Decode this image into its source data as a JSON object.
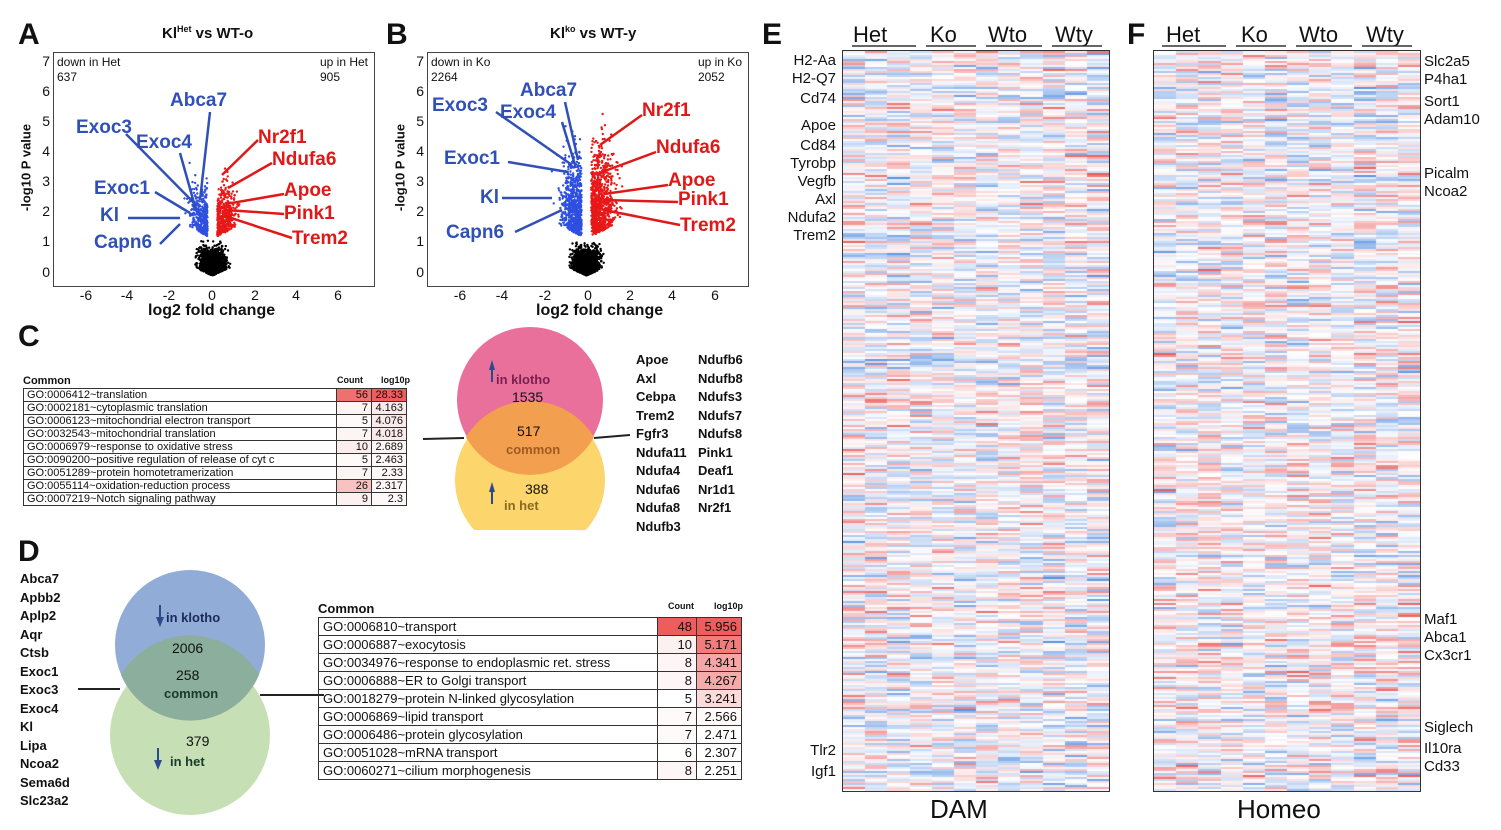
{
  "panels": {
    "a": {
      "label": "A",
      "title_pre": "Kl",
      "title_sup": "Het",
      "title_post": " vs WT-o",
      "down_label": "down in Het",
      "down_count": "637",
      "up_label": "up in Het",
      "up_count": "905",
      "ylabel": "-log10 P value",
      "xlabel": "log2 fold change",
      "yticks": [
        "7",
        "6",
        "5",
        "4",
        "3",
        "2",
        "1",
        "0"
      ],
      "xticks": [
        "-6",
        "-4",
        "-2",
        "0",
        "2",
        "4",
        "6"
      ],
      "blue_genes": [
        "Abca7",
        "Exoc3",
        "Exoc4",
        "Exoc1",
        "Kl",
        "Capn6"
      ],
      "red_genes": [
        "Nr2f1",
        "Ndufa6",
        "Apoe",
        "Pink1",
        "Trem2"
      ]
    },
    "b": {
      "label": "B",
      "title_pre": "Kl",
      "title_sup": "ko",
      "title_post": " vs WT-y",
      "down_label": "down in Ko",
      "down_count": "2264",
      "up_label": "up in Ko",
      "up_count": "2052",
      "ylabel": "-log10 P value",
      "xlabel": "log2 fold change",
      "yticks": [
        "7",
        "6",
        "5",
        "4",
        "3",
        "2",
        "1",
        "0"
      ],
      "xticks": [
        "-6",
        "-4",
        "-2",
        "0",
        "2",
        "4",
        "6"
      ],
      "blue_genes": [
        "Abca7",
        "Exoc3",
        "Exoc4",
        "Exoc1",
        "Kl",
        "Capn6"
      ],
      "red_genes": [
        "Nr2f1",
        "Ndufa6",
        "Apoe",
        "Pink1",
        "Trem2"
      ]
    },
    "c": {
      "label": "C",
      "table_header": "Common",
      "col_count": "Count",
      "col_logp": "log10p",
      "rows": [
        {
          "term": "GO:0006412~translation",
          "count": "56",
          "logp": "28.33"
        },
        {
          "term": "GO:0002181~cytoplasmic translation",
          "count": "7",
          "logp": "4.163"
        },
        {
          "term": "GO:0006123~mitochondrial electron transport",
          "count": "5",
          "logp": "4.076"
        },
        {
          "term": "GO:0032543~mitochondrial translation",
          "count": "7",
          "logp": "4.018"
        },
        {
          "term": "GO:0006979~response to oxidative stress",
          "count": "10",
          "logp": "2.689"
        },
        {
          "term": "GO:0090200~positive regulation of release of cyt c",
          "count": "5",
          "logp": "2.463"
        },
        {
          "term": "GO:0051289~protein homotetramerization",
          "count": "7",
          "logp": "2.33"
        },
        {
          "term": "GO:0055114~oxidation-reduction process",
          "count": "26",
          "logp": "2.317"
        },
        {
          "term": "GO:0007219~Notch signaling pathway",
          "count": "9",
          "logp": "2.3"
        }
      ],
      "venn_top_label": "in klotho",
      "venn_top_count": "1535",
      "venn_common_count": "517",
      "venn_common_label": "common",
      "venn_bottom_count": "388",
      "venn_bottom_label": "in het",
      "genes_col1": [
        "Apoe",
        "Axl",
        "Cebpa",
        "Trem2",
        "Fgfr3",
        "Ndufa11",
        "Ndufa4",
        "Ndufa6",
        "Ndufa8",
        "Ndufb3"
      ],
      "genes_col2": [
        "Ndufb6",
        "Ndufb8",
        "Ndufs3",
        "Ndufs7",
        "Ndufs8",
        "Pink1",
        "Deaf1",
        "Nr1d1",
        "Nr2f1"
      ]
    },
    "d": {
      "label": "D",
      "genes": [
        "Abca7",
        "Apbb2",
        "Aplp2",
        "Aqr",
        "Ctsb",
        "Exoc1",
        "Exoc3",
        "Exoc4",
        "Kl",
        "Lipa",
        "Ncoa2",
        "Sema6d",
        "Slc23a2"
      ],
      "venn_top_label": "in klotho",
      "venn_top_count": "2006",
      "venn_common_count": "258",
      "venn_common_label": "common",
      "venn_bottom_count": "379",
      "venn_bottom_label": "in het",
      "table_header": "Common",
      "col_count": "Count",
      "col_logp": "log10p",
      "rows": [
        {
          "term": "GO:0006810~transport",
          "count": "48",
          "logp": "5.956"
        },
        {
          "term": "GO:0006887~exocytosis",
          "count": "10",
          "logp": "5.171"
        },
        {
          "term": "GO:0034976~response to endoplasmic ret. stress",
          "count": "8",
          "logp": "4.341"
        },
        {
          "term": "GO:0006888~ER to Golgi  transport",
          "count": "8",
          "logp": "4.267"
        },
        {
          "term": "GO:0018279~protein N-linked glycosylation",
          "count": "5",
          "logp": "3.241"
        },
        {
          "term": "GO:0006869~lipid transport",
          "count": "7",
          "logp": "2.566"
        },
        {
          "term": "GO:0006486~protein glycosylation",
          "count": "7",
          "logp": "2.471"
        },
        {
          "term": "GO:0051028~mRNA transport",
          "count": "6",
          "logp": "2.307"
        },
        {
          "term": "GO:0060271~cilium morphogenesis",
          "count": "8",
          "logp": "2.251"
        }
      ]
    },
    "e": {
      "label": "E",
      "groups": [
        "Het",
        "Ko",
        "Wto",
        "Wty"
      ],
      "footer": "DAM",
      "genes_top": [
        "H2-Aa",
        "H2-Q7",
        "Cd74"
      ],
      "genes_mid": [
        "Apoe",
        "Cd84",
        "Tyrobp",
        "Vegfb",
        "Axl",
        "Ndufa2",
        "Trem2"
      ],
      "genes_bottom": [
        "Tlr2",
        "Igf1"
      ]
    },
    "f": {
      "label": "F",
      "groups": [
        "Het",
        "Ko",
        "Wto",
        "Wty"
      ],
      "footer": "Homeo",
      "genes_top": [
        "Slc2a5",
        "P4ha1",
        "Sort1",
        "Adam10"
      ],
      "genes_mid": [
        "Picalm",
        "Ncoa2"
      ],
      "genes_low": [
        "Maf1",
        "Abca1",
        "Cx3cr1"
      ],
      "genes_bottom": [
        "Siglech",
        "Il10ra",
        "Cd33"
      ]
    }
  },
  "colors": {
    "blue": "#3050b8",
    "red": "#e01818",
    "venn_pink": "#e8709a",
    "venn_yellow": "#fcd56c",
    "venn_orange": "#f2a050",
    "venn_blue": "#92acd8",
    "venn_green": "#c6dfb4",
    "venn_teal": "#8cae9c"
  }
}
